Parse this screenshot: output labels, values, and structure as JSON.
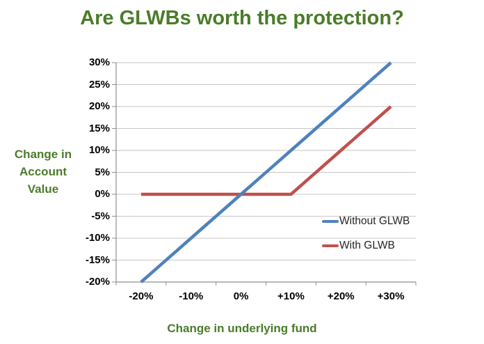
{
  "page": {
    "background": "#ffffff"
  },
  "chart_data": {
    "type": "line",
    "title": "Are GLWBs worth the protection?",
    "title_color": "#4B7C2A",
    "xlabel": "Change in underlying fund",
    "ylabel": "Change in Account Value",
    "axis_label_color": "#4B7C2A",
    "x_tick_labels": [
      "-20%",
      "-10%",
      "0%",
      "+10%",
      "+20%",
      "+30%"
    ],
    "x_values": [
      -20,
      -10,
      0,
      10,
      20,
      30
    ],
    "y_tick_labels": [
      "30%",
      "25%",
      "20%",
      "15%",
      "10%",
      "5%",
      "0%",
      "-5%",
      "-10%",
      "-15%",
      "-20%"
    ],
    "y_tick_values": [
      30,
      25,
      20,
      15,
      10,
      5,
      0,
      -5,
      -10,
      -15,
      -20
    ],
    "ylim": [
      -20,
      30
    ],
    "grid": "horizontal",
    "gridline_color": "#C6C6C6",
    "axis_line_color": "#8F8F8F",
    "tick_label_color": "#000000",
    "legend_position": "inside-right",
    "legend_text_color": "#262626",
    "series": [
      {
        "name": "Without GLWB",
        "color": "#4F81BD",
        "values": [
          -20,
          -10,
          0,
          10,
          20,
          30
        ]
      },
      {
        "name": "With GLWB",
        "color": "#C0504D",
        "values": [
          0,
          0,
          0,
          0,
          10,
          20
        ]
      }
    ]
  }
}
